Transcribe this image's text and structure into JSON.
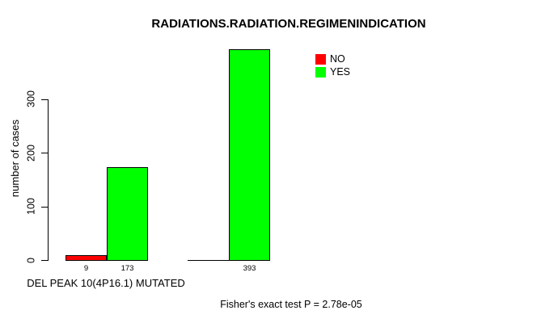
{
  "title": "RADIATIONS.RADIATION.REGIMENINDICATION",
  "footnote": "Fisher's exact test P = 2.78e-05",
  "colors": {
    "background": "#ffffff",
    "axis": "#000000",
    "no": "#ff0000",
    "yes": "#00ff00"
  },
  "legend": {
    "items": [
      {
        "label": "NO",
        "color": "#ff0000"
      },
      {
        "label": "YES",
        "color": "#00ff00"
      }
    ]
  },
  "chart_data": {
    "type": "bar",
    "title": "RADIATIONS.RADIATION.REGIMENINDICATION",
    "xlabel": "DEL PEAK 10(4P16.1) MUTATED",
    "ylabel": "number of cases",
    "y_ticks": [
      0,
      100,
      200,
      300
    ],
    "ylim": [
      0,
      393
    ],
    "grid": false,
    "legend_position": "top-right",
    "series": [
      {
        "name": "NO",
        "color": "#ff0000"
      },
      {
        "name": "YES",
        "color": "#00ff00"
      }
    ],
    "groups": [
      {
        "label": "DEL PEAK 10(4P16.1) MUTATED",
        "bars": [
          {
            "series": "NO",
            "value": 9,
            "value_label": "9",
            "color": "#ff0000"
          },
          {
            "series": "YES",
            "value": 173,
            "value_label": "173",
            "color": "#00ff00"
          }
        ]
      },
      {
        "label": "",
        "bars": [
          {
            "series": "NO",
            "value": 0,
            "value_label": "",
            "color": "#ff0000"
          },
          {
            "series": "YES",
            "value": 393,
            "value_label": "393",
            "color": "#00ff00"
          }
        ]
      }
    ],
    "annotation": "Fisher's exact test P = 2.78e-05"
  }
}
